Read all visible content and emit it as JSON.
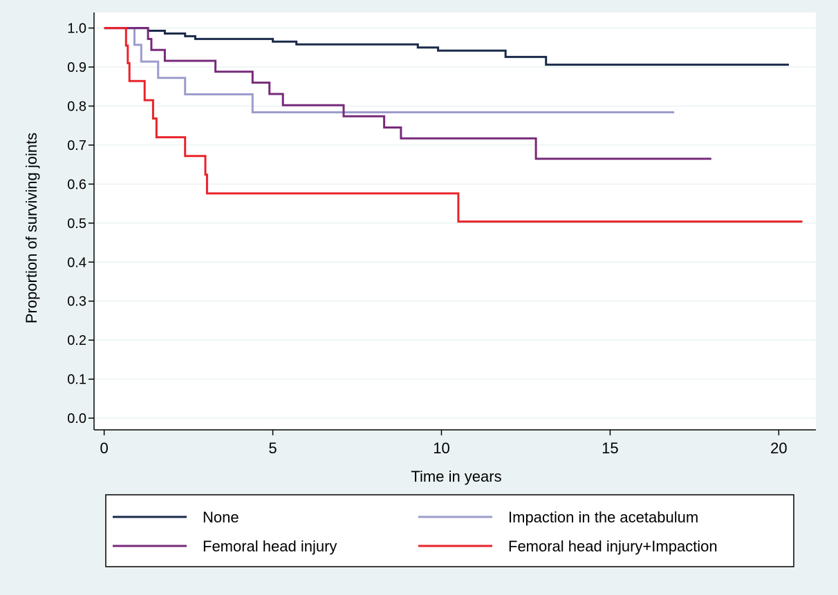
{
  "colors": {
    "background": "#eaf2f3",
    "plot_background": "#ffffff",
    "grid": "#eaf2f3",
    "axis": "#000000"
  },
  "chart_data": {
    "type": "line",
    "subtype": "kaplan-meier step",
    "title": "",
    "xlabel": "Time in years",
    "ylabel": "Proportion of surviving joints",
    "xlim": [
      -0.3,
      21.1
    ],
    "ylim": [
      -0.03,
      1.04
    ],
    "xticks": [
      0,
      5,
      10,
      15,
      20
    ],
    "xtick_labels": [
      "0",
      "5",
      "10",
      "15",
      "20"
    ],
    "yticks": [
      0.0,
      0.1,
      0.2,
      0.3,
      0.4,
      0.5,
      0.6,
      0.7,
      0.8,
      0.9,
      1.0
    ],
    "ytick_labels": [
      "0.0",
      "0.1",
      "0.2",
      "0.3",
      "0.4",
      "0.5",
      "0.6",
      "0.7",
      "0.8",
      "0.9",
      "1.0"
    ],
    "grid": "horizontal",
    "legend_position": "bottom",
    "series": [
      {
        "name": "None",
        "color": "#1a2a4a",
        "x": [
          0,
          1.3,
          1.8,
          2.4,
          2.7,
          5.0,
          5.7,
          9.3,
          9.9,
          11.9,
          13.1,
          20.3
        ],
        "y": [
          1.0,
          0.993,
          0.986,
          0.979,
          0.972,
          0.965,
          0.958,
          0.95,
          0.942,
          0.926,
          0.906,
          0.906
        ]
      },
      {
        "name": "Impaction in the acetabulum",
        "color": "#9c9ccd",
        "x": [
          0,
          0.9,
          1.1,
          1.6,
          2.4,
          4.4,
          16.9
        ],
        "y": [
          1.0,
          0.957,
          0.914,
          0.872,
          0.83,
          0.784,
          0.784
        ]
      },
      {
        "name": "Femoral head injury",
        "color": "#772a7a",
        "x": [
          0,
          1.3,
          1.4,
          1.8,
          3.3,
          4.4,
          4.9,
          5.3,
          7.1,
          8.3,
          8.8,
          12.8,
          18.0
        ],
        "y": [
          1.0,
          0.972,
          0.944,
          0.916,
          0.888,
          0.86,
          0.831,
          0.802,
          0.774,
          0.745,
          0.717,
          0.665,
          0.665
        ]
      },
      {
        "name": "Femoral head injury+Impaction",
        "color": "#e8232a",
        "x": [
          0,
          0.65,
          0.7,
          0.75,
          1.2,
          1.45,
          1.55,
          2.4,
          3.0,
          3.05,
          10.5,
          20.7
        ],
        "y": [
          1.0,
          0.955,
          0.91,
          0.864,
          0.815,
          0.768,
          0.72,
          0.672,
          0.624,
          0.576,
          0.504,
          0.504
        ]
      }
    ]
  }
}
